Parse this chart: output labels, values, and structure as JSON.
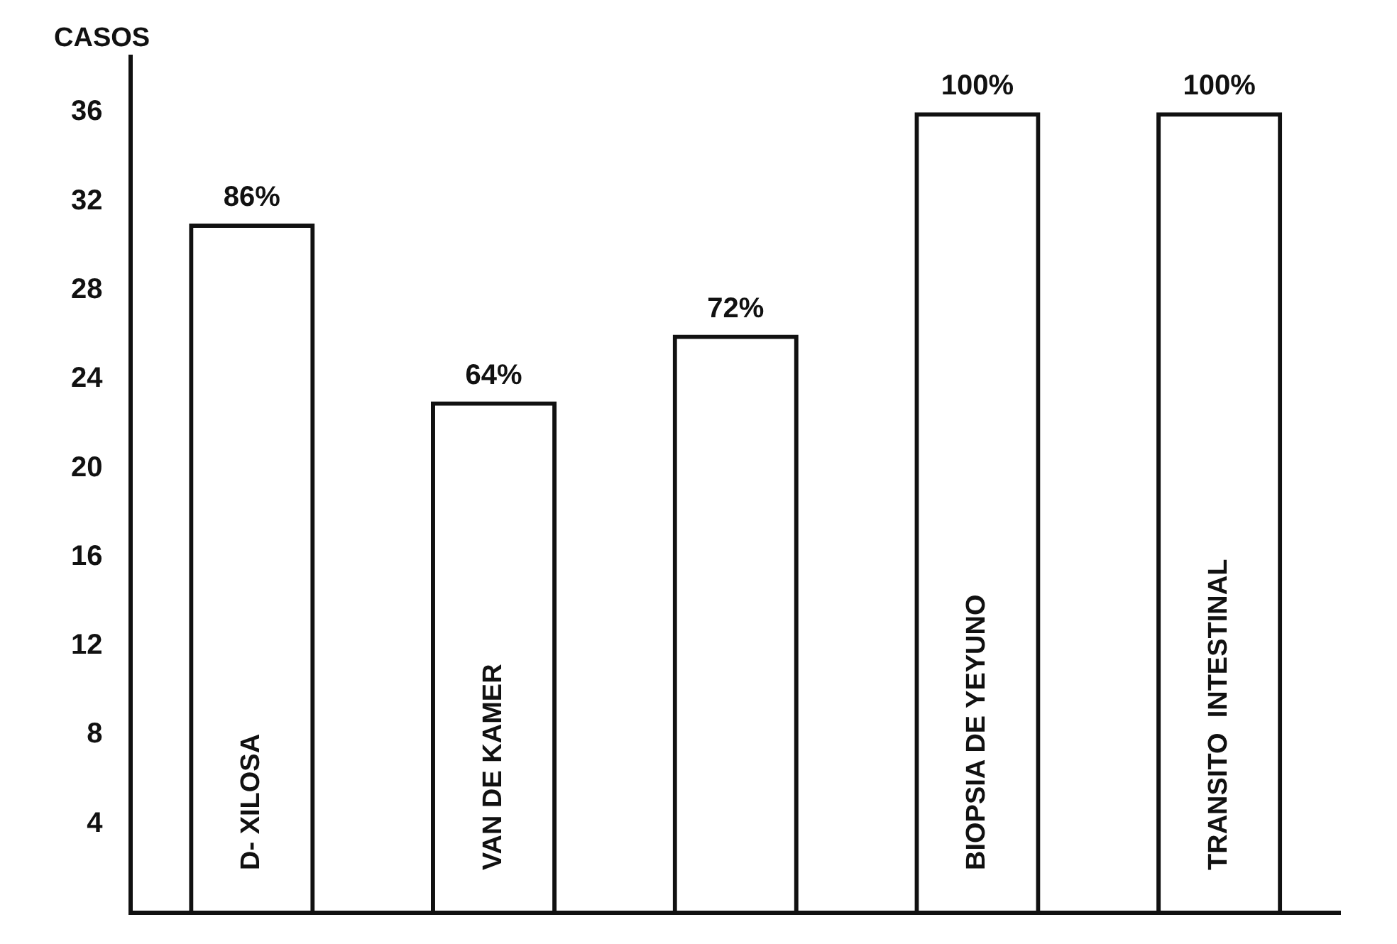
{
  "chart_data": {
    "type": "bar",
    "ylabel": "CASOS",
    "categories": [
      "D- XILOSA",
      "VAN DE KAMER",
      null,
      "BIOPSIA DE YEYUNO",
      "TRANSITO  INTESTINAL"
    ],
    "values": [
      31,
      23,
      26,
      36,
      36
    ],
    "annotations": [
      {
        "text": "86%",
        "x": "D- XILOSA",
        "y": 31
      },
      {
        "text": "64%",
        "x": "VAN DE KAMER",
        "y": 23
      },
      {
        "text": "72%",
        "y": 26
      },
      {
        "text": "100%",
        "x": "BIOPSIA DE YEYUNO",
        "y": 36
      },
      {
        "text": "100%",
        "x": "TRANSITO  INTESTINAL",
        "y": 36
      }
    ],
    "color": "#111111",
    "ylim": [
      0,
      38.5
    ],
    "yticks": [
      4,
      8,
      12,
      16,
      20,
      24,
      28,
      32,
      36
    ],
    "grid": false,
    "legend": false
  }
}
